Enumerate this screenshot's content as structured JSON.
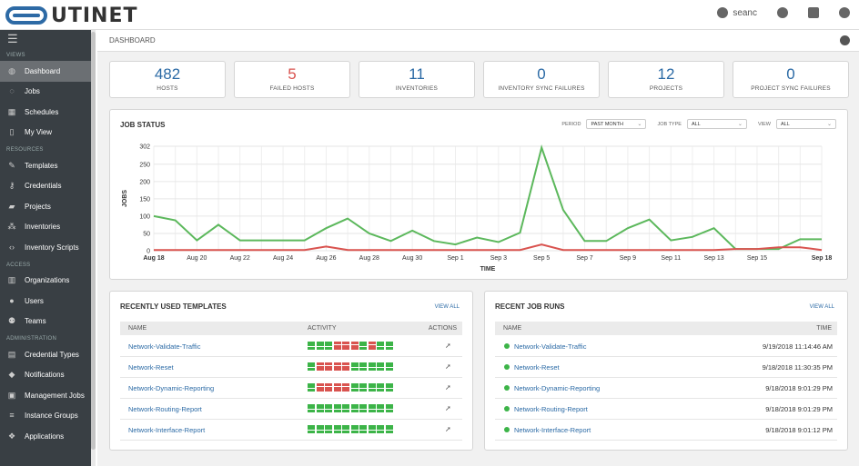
{
  "app": {
    "brand_text": "UTINET",
    "user": "seanc"
  },
  "sidebar": {
    "sections": [
      {
        "title": "VIEWS",
        "items": [
          {
            "label": "Dashboard",
            "icon": "dashboard-icon",
            "active": true
          },
          {
            "label": "Jobs",
            "icon": "jobs-icon"
          },
          {
            "label": "Schedules",
            "icon": "calendar-icon"
          },
          {
            "label": "My View",
            "icon": "my-view-icon"
          }
        ]
      },
      {
        "title": "RESOURCES",
        "items": [
          {
            "label": "Templates",
            "icon": "templates-icon"
          },
          {
            "label": "Credentials",
            "icon": "key-icon"
          },
          {
            "label": "Projects",
            "icon": "folder-icon"
          },
          {
            "label": "Inventories",
            "icon": "inventories-icon"
          },
          {
            "label": "Inventory Scripts",
            "icon": "code-icon"
          }
        ]
      },
      {
        "title": "ACCESS",
        "items": [
          {
            "label": "Organizations",
            "icon": "building-icon"
          },
          {
            "label": "Users",
            "icon": "user-icon"
          },
          {
            "label": "Teams",
            "icon": "users-icon"
          }
        ]
      },
      {
        "title": "ADMINISTRATION",
        "items": [
          {
            "label": "Credential Types",
            "icon": "id-card-icon"
          },
          {
            "label": "Notifications",
            "icon": "bell-icon"
          },
          {
            "label": "Management Jobs",
            "icon": "briefcase-icon"
          },
          {
            "label": "Instance Groups",
            "icon": "server-icon"
          },
          {
            "label": "Applications",
            "icon": "cubes-icon"
          }
        ]
      }
    ]
  },
  "breadcrumb": "DASHBOARD",
  "counts": [
    {
      "value": "482",
      "label": "HOSTS",
      "red": false
    },
    {
      "value": "5",
      "label": "FAILED HOSTS",
      "red": true
    },
    {
      "value": "11",
      "label": "INVENTORIES",
      "red": false
    },
    {
      "value": "0",
      "label": "INVENTORY SYNC FAILURES",
      "red": false
    },
    {
      "value": "12",
      "label": "PROJECTS",
      "red": false
    },
    {
      "value": "0",
      "label": "PROJECT SYNC FAILURES",
      "red": false
    }
  ],
  "job_status": {
    "title": "JOB STATUS",
    "period_label": "PERIOD",
    "period_value": "PAST MONTH",
    "job_type_label": "JOB TYPE",
    "job_type_value": "ALL",
    "view_label": "VIEW",
    "view_value": "ALL"
  },
  "chart_data": {
    "type": "line",
    "xlabel": "TIME",
    "ylabel": "JOBS",
    "x": [
      "Aug 18",
      "Aug 19",
      "Aug 20",
      "Aug 21",
      "Aug 22",
      "Aug 23",
      "Aug 24",
      "Aug 25",
      "Aug 26",
      "Aug 27",
      "Aug 28",
      "Aug 29",
      "Aug 30",
      "Aug 31",
      "Sep 1",
      "Sep 2",
      "Sep 3",
      "Sep 4",
      "Sep 5",
      "Sep 6",
      "Sep 7",
      "Sep 8",
      "Sep 9",
      "Sep 10",
      "Sep 11",
      "Sep 12",
      "Sep 13",
      "Sep 14",
      "Sep 15",
      "Sep 16",
      "Sep 17",
      "Sep 18"
    ],
    "xticks": [
      "Aug 18",
      "Aug 20",
      "Aug 22",
      "Aug 24",
      "Aug 26",
      "Aug 28",
      "Aug 30",
      "Sep 1",
      "Sep 3",
      "Sep 5",
      "Sep 7",
      "Sep 9",
      "Sep 11",
      "Sep 13",
      "Sep 15",
      "Sep 18"
    ],
    "yticks": [
      0,
      50,
      100,
      150,
      200,
      250,
      302
    ],
    "ylim": [
      0,
      302
    ],
    "grid": true,
    "series": [
      {
        "color": "#5cb85c",
        "values": [
          100,
          88,
          30,
          75,
          30,
          30,
          30,
          30,
          65,
          93,
          50,
          28,
          58,
          28,
          18,
          38,
          25,
          52,
          298,
          118,
          28,
          28,
          65,
          90,
          30,
          40,
          65,
          5,
          5,
          5,
          33,
          33
        ]
      },
      {
        "color": "#d9534f",
        "values": [
          2,
          2,
          2,
          2,
          2,
          2,
          2,
          2,
          12,
          2,
          2,
          2,
          2,
          2,
          2,
          2,
          2,
          2,
          18,
          2,
          2,
          2,
          2,
          2,
          2,
          2,
          2,
          5,
          5,
          10,
          10,
          2
        ]
      }
    ]
  },
  "templates": {
    "title": "RECENTLY USED TEMPLATES",
    "view_all": "VIEW ALL",
    "columns": [
      "NAME",
      "ACTIVITY",
      "ACTIONS"
    ],
    "rows": [
      {
        "name": "Network-Validate-Traffic",
        "activity": [
          "s",
          "s",
          "s",
          "f",
          "f",
          "f",
          "s",
          "f",
          "s",
          "s"
        ]
      },
      {
        "name": "Network-Reset",
        "activity": [
          "s",
          "f",
          "f",
          "f",
          "f",
          "s",
          "s",
          "s",
          "s",
          "s"
        ]
      },
      {
        "name": "Network-Dynamic-Reporting",
        "activity": [
          "s",
          "f",
          "f",
          "f",
          "f",
          "s",
          "s",
          "s",
          "s",
          "s"
        ]
      },
      {
        "name": "Network-Routing-Report",
        "activity": [
          "s",
          "s",
          "s",
          "s",
          "s",
          "s",
          "s",
          "s",
          "s",
          "s"
        ]
      },
      {
        "name": "Network-Interface-Report",
        "activity": [
          "s",
          "s",
          "s",
          "s",
          "s",
          "s",
          "s",
          "s",
          "s",
          "s"
        ]
      }
    ]
  },
  "job_runs": {
    "title": "RECENT JOB RUNS",
    "view_all": "VIEW ALL",
    "columns": [
      "NAME",
      "TIME"
    ],
    "rows": [
      {
        "name": "Network-Validate-Traffic",
        "time": "9/19/2018 11:14:46 AM"
      },
      {
        "name": "Network-Reset",
        "time": "9/18/2018 11:30:35 PM"
      },
      {
        "name": "Network-Dynamic-Reporting",
        "time": "9/18/2018 9:01:29 PM"
      },
      {
        "name": "Network-Routing-Report",
        "time": "9/18/2018 9:01:29 PM"
      },
      {
        "name": "Network-Interface-Report",
        "time": "9/18/2018 9:01:12 PM"
      }
    ]
  }
}
